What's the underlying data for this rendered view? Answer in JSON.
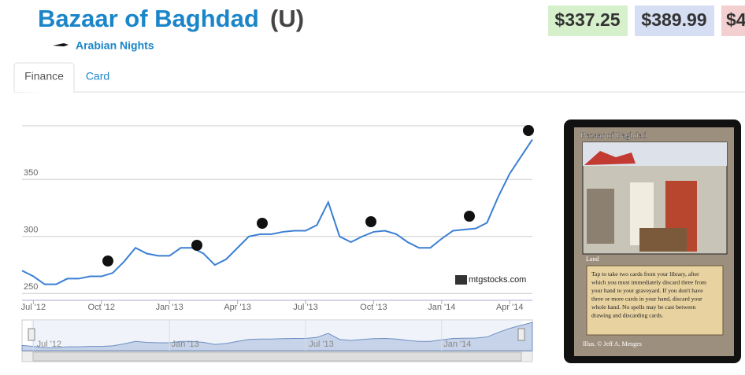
{
  "header": {
    "title": "Bazaar of Baghdad",
    "rarity": "(U)",
    "set": "Arabian Nights"
  },
  "prices": [
    "$337.25",
    "$389.99",
    "$4"
  ],
  "tabs": [
    "Finance",
    "Card"
  ],
  "chart": {
    "type": "line",
    "color": "#3b7fd4",
    "values": [
      270,
      265,
      258,
      258,
      263,
      263,
      265,
      265,
      268,
      278,
      290,
      285,
      283,
      283,
      290,
      290,
      285,
      275,
      280,
      290,
      300,
      302,
      302,
      304,
      305,
      305,
      310,
      330,
      300,
      295,
      300,
      304,
      305,
      302,
      295,
      290,
      290,
      298,
      305,
      306,
      307,
      312,
      335,
      355,
      370,
      385
    ],
    "xlim": [
      0,
      45
    ],
    "xticks": [
      {
        "value": 1,
        "label": "Jul '12"
      },
      {
        "value": 7,
        "label": "Oct '12"
      },
      {
        "value": 13,
        "label": "Jan '13"
      },
      {
        "value": 19,
        "label": "Apr '13"
      },
      {
        "value": 25,
        "label": "Jul '13"
      },
      {
        "value": 31,
        "label": "Oct '13"
      },
      {
        "value": 37,
        "label": "Jan '14"
      },
      {
        "value": 43,
        "label": "Apr '14"
      }
    ],
    "ylim": [
      244,
      397
    ],
    "yticks": [
      250,
      300,
      350
    ],
    "grid": true,
    "watermark": "mtgstocks.com",
    "navigator_ticks": [
      {
        "value": 1,
        "label": "Jul '12"
      },
      {
        "value": 13,
        "label": "Jan '13"
      },
      {
        "value": 25,
        "label": "Jul '13"
      },
      {
        "value": 37,
        "label": "Jan '14"
      }
    ]
  },
  "card": {
    "name": "Bazaar of Baghdad",
    "type_line": "Land",
    "rules": [
      "Tap to take two cards from your library, after",
      "which you must immediately discard three from",
      "your hand to your graveyard. If you don't have",
      "three or more cards in your hand, discard your",
      "whole hand.  No spells may be cast between",
      "drawing and discarding cards."
    ],
    "illustrator": "Illus. © Jeff A. Menges"
  }
}
